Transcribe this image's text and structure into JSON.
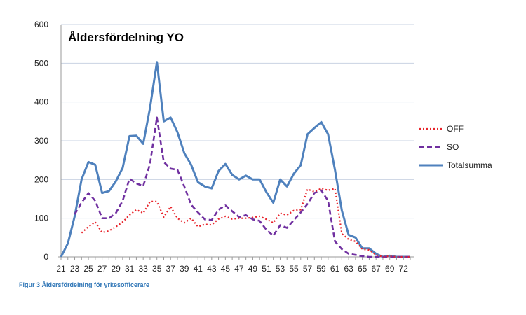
{
  "chart_data": {
    "type": "line",
    "title": "Åldersfördelning YO",
    "caption": "Figur 3 Åldersfördelning för yrkesofficerare",
    "xlabel": "",
    "ylabel": "",
    "ylim": [
      0,
      600
    ],
    "yticks": [
      0,
      100,
      200,
      300,
      400,
      500,
      600
    ],
    "grid": true,
    "legend_position": "right",
    "categories": [
      21,
      22,
      23,
      24,
      25,
      26,
      27,
      28,
      29,
      30,
      31,
      32,
      33,
      34,
      35,
      36,
      37,
      38,
      39,
      40,
      41,
      42,
      43,
      44,
      45,
      46,
      47,
      48,
      49,
      50,
      51,
      52,
      53,
      54,
      55,
      56,
      57,
      58,
      59,
      60,
      61,
      62,
      63,
      64,
      65,
      66,
      67,
      68,
      69,
      70,
      72,
      73
    ],
    "xtick_labels": [
      "21",
      "23",
      "25",
      "27",
      "29",
      "31",
      "33",
      "35",
      "37",
      "39",
      "41",
      "43",
      "45",
      "47",
      "49",
      "51",
      "53",
      "55",
      "57",
      "59",
      "61",
      "63",
      "65",
      "67",
      "69",
      "72"
    ],
    "series": [
      {
        "name": "OFF",
        "color": "#E8242B",
        "style": "dotted",
        "values": [
          0,
          null,
          null,
          62,
          78,
          90,
          63,
          67,
          78,
          90,
          108,
          122,
          113,
          143,
          143,
          103,
          130,
          100,
          88,
          100,
          78,
          84,
          83,
          98,
          105,
          98,
          100,
          100,
          102,
          105,
          97,
          88,
          113,
          108,
          120,
          122,
          175,
          168,
          177,
          172,
          177,
          60,
          45,
          40,
          20,
          18,
          5,
          0,
          2,
          0,
          0,
          0
        ]
      },
      {
        "name": "SO",
        "color": "#7030A0",
        "style": "dashed",
        "values": [
          null,
          null,
          110,
          140,
          165,
          145,
          100,
          100,
          113,
          145,
          202,
          190,
          183,
          240,
          360,
          245,
          228,
          225,
          182,
          135,
          115,
          97,
          95,
          122,
          133,
          118,
          103,
          108,
          97,
          93,
          70,
          55,
          82,
          75,
          95,
          115,
          137,
          165,
          172,
          145,
          40,
          20,
          8,
          5,
          2,
          0,
          0,
          0,
          0,
          0,
          0,
          0
        ]
      },
      {
        "name": "Totalsumma",
        "color": "#4F81BD",
        "style": "solid",
        "values": [
          0,
          35,
          105,
          200,
          245,
          238,
          165,
          170,
          195,
          230,
          312,
          313,
          292,
          385,
          503,
          350,
          360,
          322,
          268,
          238,
          193,
          182,
          177,
          222,
          240,
          212,
          200,
          210,
          200,
          200,
          167,
          140,
          200,
          182,
          215,
          237,
          317,
          333,
          348,
          317,
          225,
          120,
          57,
          50,
          22,
          22,
          8,
          0,
          3,
          0,
          0,
          0
        ]
      }
    ]
  }
}
